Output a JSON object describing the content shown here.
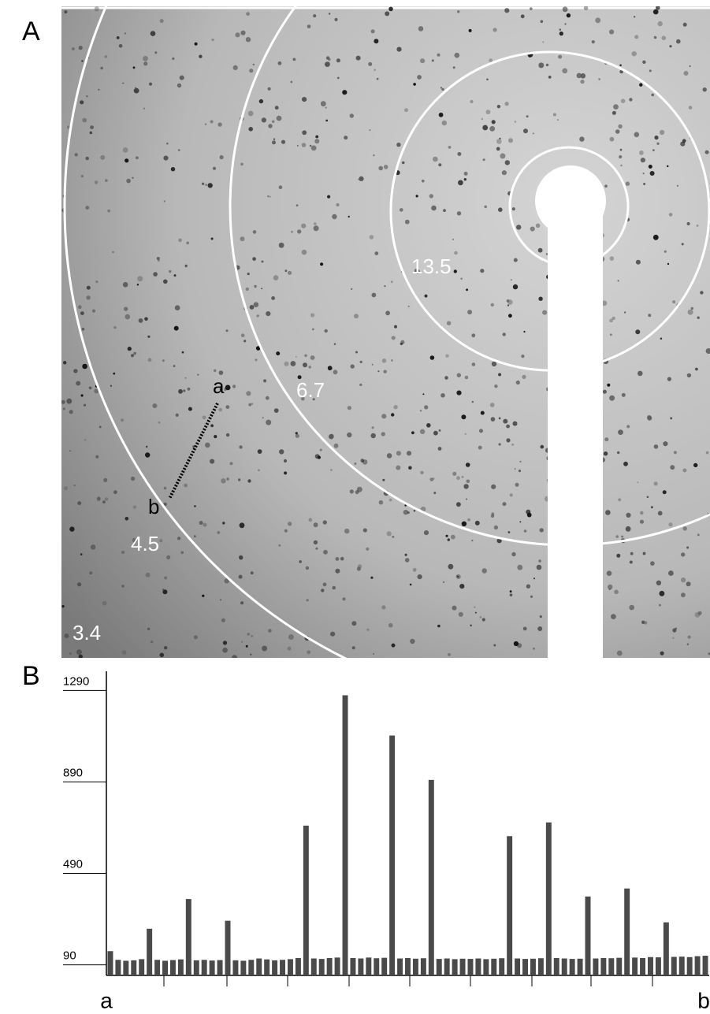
{
  "panel_a": {
    "label": "A",
    "ring_labels": [
      "13.5",
      "6.7",
      "4.5",
      "3.4"
    ],
    "line_labels": [
      "a",
      "b"
    ]
  },
  "chart_data": {
    "type": "bar",
    "panel_label": "B",
    "color": "#4a4a4a",
    "ylim": [
      44,
      1374
    ],
    "yticks": [
      90,
      490,
      890,
      1290
    ],
    "x_end_labels": [
      "a",
      "b"
    ],
    "values": [
      150,
      112,
      108,
      110,
      115,
      248,
      112,
      108,
      111,
      114,
      378,
      110,
      112,
      109,
      111,
      283,
      110,
      108,
      112,
      118,
      114,
      110,
      112,
      115,
      120,
      699,
      118,
      116,
      120,
      122,
      1269,
      120,
      118,
      122,
      119,
      121,
      1093,
      118,
      120,
      117,
      119,
      899,
      116,
      118,
      115,
      117,
      116,
      118,
      115,
      117,
      119,
      653,
      118,
      116,
      117,
      119,
      713,
      120,
      118,
      116,
      117,
      389,
      118,
      120,
      119,
      121,
      424,
      122,
      120,
      124,
      123,
      276,
      125,
      126,
      124,
      128,
      130
    ]
  }
}
